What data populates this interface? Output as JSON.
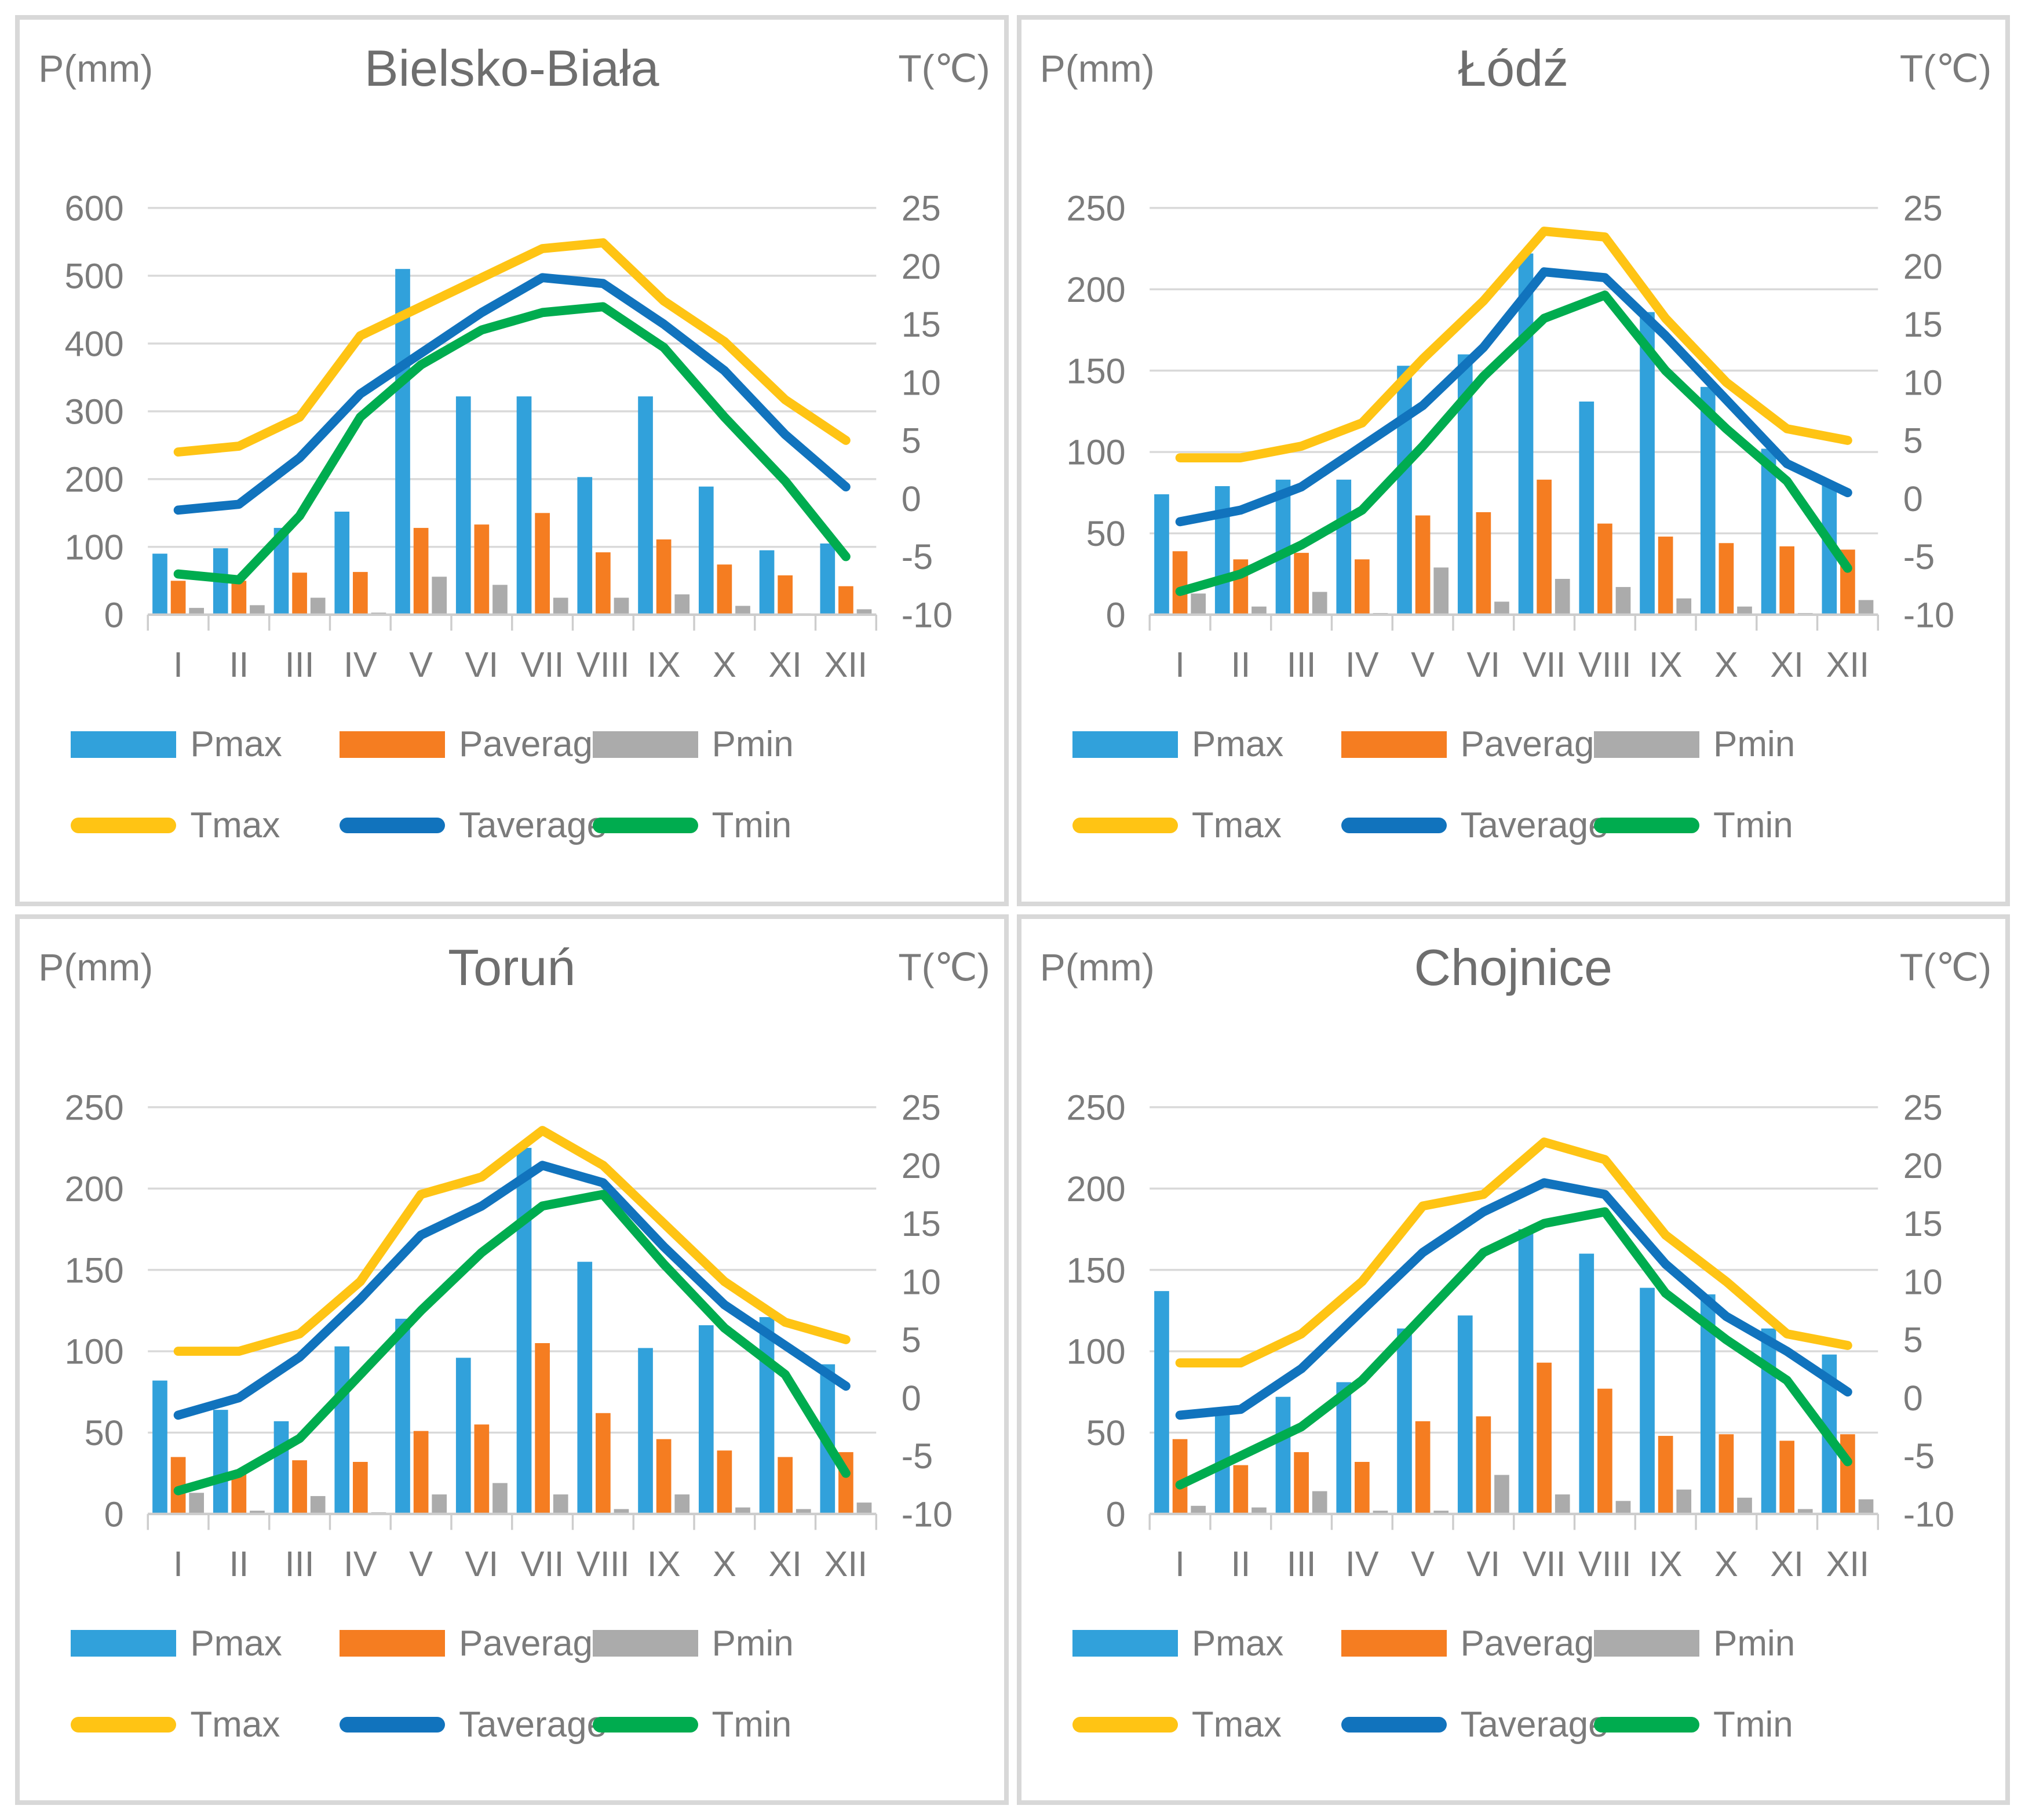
{
  "colors": {
    "pmax": "#31A1DB",
    "paverage": "#F57D21",
    "pmin": "#ABABAB",
    "tmax": "#FFC414",
    "taverage": "#1173BD",
    "tmin": "#00AC4F",
    "grid": "#D9D9D9",
    "axis": "#CDCDCD",
    "tick_text": "#7B7B7B",
    "title_text": "#6E6E6E"
  },
  "legend": {
    "items": [
      {
        "label": "Pmax",
        "type": "bar",
        "color_key": "pmax"
      },
      {
        "label": "Paverage",
        "type": "bar",
        "color_key": "paverage"
      },
      {
        "label": "Pmin",
        "type": "bar",
        "color_key": "pmin"
      },
      {
        "label": "Tmax",
        "type": "line",
        "color_key": "tmax"
      },
      {
        "label": "Taverage",
        "type": "line",
        "color_key": "taverage"
      },
      {
        "label": "Tmin",
        "type": "line",
        "color_key": "tmin"
      }
    ]
  },
  "chart_data": [
    {
      "type": "combo_bar_line",
      "title": "Bielsko-Biała",
      "p_axis": {
        "label": "P(mm)",
        "min": 0,
        "max": 600,
        "step": 100
      },
      "t_axis": {
        "label": "T(℃)",
        "min": -10,
        "max": 25,
        "step": 5
      },
      "months": [
        "I",
        "II",
        "III",
        "IV",
        "V",
        "VI",
        "VII",
        "VIII",
        "IX",
        "X",
        "XI",
        "XII"
      ],
      "grid": true,
      "legend_position": "bottom",
      "series": [
        {
          "name": "Pmax",
          "type": "bar",
          "axis": "P",
          "color_key": "pmax",
          "values": [
            90,
            98,
            128,
            152,
            510,
            322,
            322,
            203,
            322,
            189,
            95,
            105
          ]
        },
        {
          "name": "Paverage",
          "type": "bar",
          "axis": "P",
          "color_key": "paverage",
          "values": [
            50,
            50,
            62,
            63,
            128,
            133,
            150,
            92,
            111,
            74,
            58,
            42
          ]
        },
        {
          "name": "Pmin",
          "type": "bar",
          "axis": "P",
          "color_key": "pmin",
          "values": [
            10,
            14,
            25,
            3,
            56,
            44,
            25,
            25,
            30,
            13,
            2,
            8
          ]
        },
        {
          "name": "Tmax",
          "type": "line",
          "axis": "T",
          "color_key": "tmax",
          "values": [
            4,
            4.5,
            7,
            14,
            16.5,
            19,
            21.5,
            22,
            17,
            13.5,
            8.5,
            5
          ]
        },
        {
          "name": "Taverage",
          "type": "line",
          "axis": "T",
          "color_key": "taverage",
          "values": [
            -1,
            -0.5,
            3.5,
            9,
            12.5,
            16,
            19,
            18.5,
            15,
            11,
            5.5,
            1
          ]
        },
        {
          "name": "Tmin",
          "type": "line",
          "axis": "T",
          "color_key": "tmin",
          "values": [
            -6.5,
            -7,
            -1.5,
            7,
            11.5,
            14.5,
            16,
            16.5,
            13,
            7,
            1.5,
            -5
          ]
        }
      ]
    },
    {
      "type": "combo_bar_line",
      "title": "Łódź",
      "p_axis": {
        "label": "P(mm)",
        "min": 0,
        "max": 250,
        "step": 50
      },
      "t_axis": {
        "label": "T(℃)",
        "min": -10,
        "max": 25,
        "step": 5
      },
      "months": [
        "I",
        "II",
        "III",
        "IV",
        "V",
        "VI",
        "VII",
        "VIII",
        "IX",
        "X",
        "XI",
        "XII"
      ],
      "grid": true,
      "legend_position": "bottom",
      "series": [
        {
          "name": "Pmax",
          "type": "bar",
          "axis": "P",
          "color_key": "pmax",
          "values": [
            74,
            79,
            83,
            83,
            153,
            160,
            222,
            131,
            186,
            140,
            102,
            80
          ]
        },
        {
          "name": "Paverage",
          "type": "bar",
          "axis": "P",
          "color_key": "paverage",
          "values": [
            39,
            34,
            38,
            34,
            61,
            63,
            83,
            56,
            48,
            44,
            42,
            40
          ]
        },
        {
          "name": "Pmin",
          "type": "bar",
          "axis": "P",
          "color_key": "pmin",
          "values": [
            13,
            5,
            14,
            1,
            29,
            8,
            22,
            17,
            10,
            5,
            1,
            9
          ]
        },
        {
          "name": "Tmax",
          "type": "line",
          "axis": "T",
          "color_key": "tmax",
          "values": [
            3.5,
            3.5,
            4.5,
            6.5,
            12,
            17,
            23,
            22.5,
            15.5,
            10,
            6,
            5
          ]
        },
        {
          "name": "Taverage",
          "type": "line",
          "axis": "T",
          "color_key": "taverage",
          "values": [
            -2,
            -1,
            1,
            4.5,
            8,
            13,
            19.5,
            19,
            14,
            8.5,
            3,
            0.5
          ]
        },
        {
          "name": "Tmin",
          "type": "line",
          "axis": "T",
          "color_key": "tmin",
          "values": [
            -8,
            -6.5,
            -4,
            -1,
            4.5,
            10.5,
            15.5,
            17.5,
            11,
            6,
            1.5,
            -6
          ]
        }
      ]
    },
    {
      "type": "combo_bar_line",
      "title": "Toruń",
      "p_axis": {
        "label": "P(mm)",
        "min": 0,
        "max": 250,
        "step": 50
      },
      "t_axis": {
        "label": "T(℃)",
        "min": -10,
        "max": 25,
        "step": 5
      },
      "months": [
        "I",
        "II",
        "III",
        "IV",
        "V",
        "VI",
        "VII",
        "VIII",
        "IX",
        "X",
        "XI",
        "XII"
      ],
      "grid": true,
      "legend_position": "bottom",
      "series": [
        {
          "name": "Pmax",
          "type": "bar",
          "axis": "P",
          "color_key": "pmax",
          "values": [
            82,
            64,
            57,
            103,
            120,
            96,
            225,
            155,
            102,
            116,
            121,
            92
          ]
        },
        {
          "name": "Paverage",
          "type": "bar",
          "axis": "P",
          "color_key": "paverage",
          "values": [
            35,
            26,
            33,
            32,
            51,
            55,
            105,
            62,
            46,
            39,
            35,
            38
          ]
        },
        {
          "name": "Pmin",
          "type": "bar",
          "axis": "P",
          "color_key": "pmin",
          "values": [
            13,
            2,
            11,
            1,
            12,
            19,
            12,
            3,
            12,
            4,
            3,
            7
          ]
        },
        {
          "name": "Tmax",
          "type": "line",
          "axis": "T",
          "color_key": "tmax",
          "values": [
            4,
            4,
            5.5,
            10,
            17.5,
            19,
            23,
            20,
            15,
            10,
            6.5,
            5
          ]
        },
        {
          "name": "Taverage",
          "type": "line",
          "axis": "T",
          "color_key": "taverage",
          "values": [
            -1.5,
            0,
            3.5,
            8.5,
            14,
            16.5,
            20,
            18.5,
            13,
            8,
            4.5,
            1
          ]
        },
        {
          "name": "Tmin",
          "type": "line",
          "axis": "T",
          "color_key": "tmin",
          "values": [
            -8,
            -6.5,
            -3.5,
            2,
            7.5,
            12.5,
            16.5,
            17.5,
            11.5,
            6,
            2,
            -6.5
          ]
        }
      ]
    },
    {
      "type": "combo_bar_line",
      "title": "Chojnice",
      "p_axis": {
        "label": "P(mm)",
        "min": 0,
        "max": 250,
        "step": 50
      },
      "t_axis": {
        "label": "T(℃)",
        "min": -10,
        "max": 25,
        "step": 5
      },
      "months": [
        "I",
        "II",
        "III",
        "IV",
        "V",
        "VI",
        "VII",
        "VIII",
        "IX",
        "X",
        "XI",
        "XII"
      ],
      "grid": true,
      "legend_position": "bottom",
      "series": [
        {
          "name": "Pmax",
          "type": "bar",
          "axis": "P",
          "color_key": "pmax",
          "values": [
            137,
            61,
            72,
            81,
            114,
            122,
            175,
            160,
            139,
            135,
            114,
            98
          ]
        },
        {
          "name": "Paverage",
          "type": "bar",
          "axis": "P",
          "color_key": "paverage",
          "values": [
            46,
            30,
            38,
            32,
            57,
            60,
            93,
            77,
            48,
            49,
            45,
            49
          ]
        },
        {
          "name": "Pmin",
          "type": "bar",
          "axis": "P",
          "color_key": "pmin",
          "values": [
            5,
            4,
            14,
            2,
            2,
            24,
            12,
            8,
            15,
            10,
            3,
            9
          ]
        },
        {
          "name": "Tmax",
          "type": "line",
          "axis": "T",
          "color_key": "tmax",
          "values": [
            3,
            3,
            5.5,
            10,
            16.5,
            17.5,
            22,
            20.5,
            14,
            10,
            5.5,
            4.5
          ]
        },
        {
          "name": "Taverage",
          "type": "line",
          "axis": "T",
          "color_key": "taverage",
          "values": [
            -1.5,
            -1,
            2.5,
            7.5,
            12.5,
            16,
            18.5,
            17.5,
            11.5,
            7,
            4,
            0.5
          ]
        },
        {
          "name": "Tmin",
          "type": "line",
          "axis": "T",
          "color_key": "tmin",
          "values": [
            -7.5,
            -5,
            -2.5,
            1.5,
            7,
            12.5,
            15,
            16,
            9,
            5,
            1.5,
            -5.5
          ]
        }
      ]
    }
  ]
}
